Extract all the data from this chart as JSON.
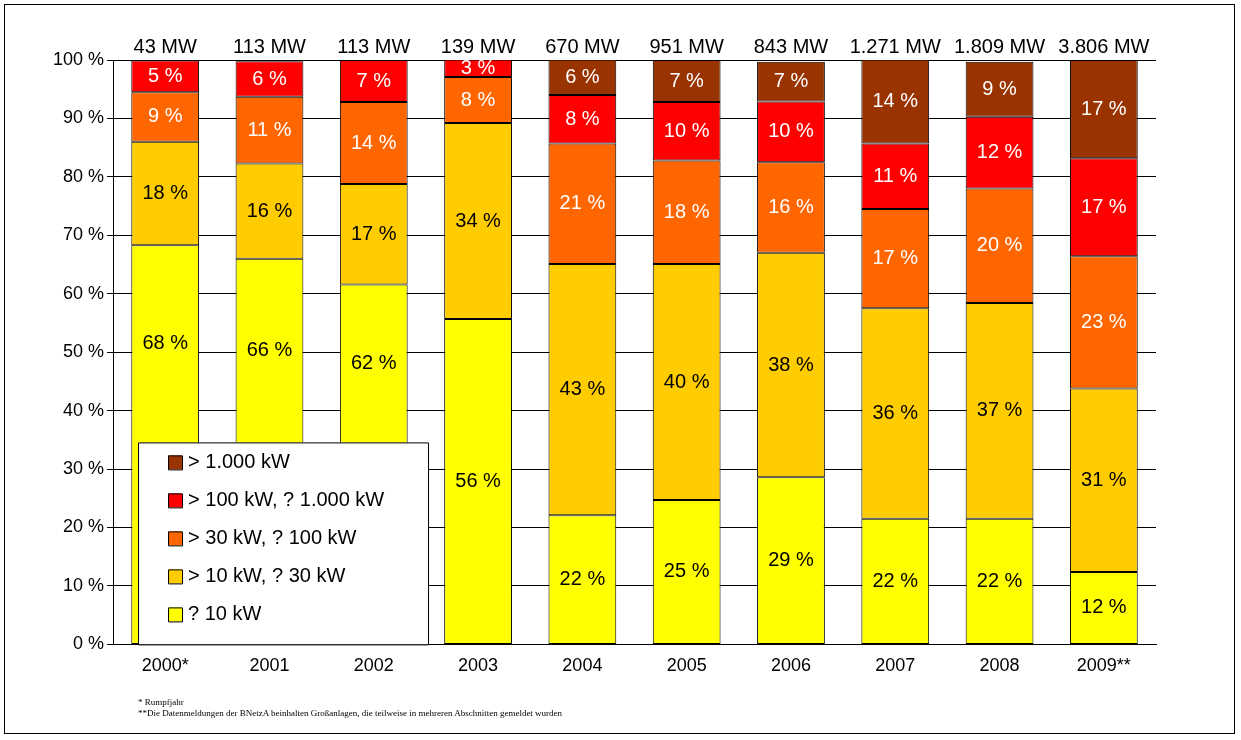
{
  "chart_data": {
    "type": "bar",
    "stacked": true,
    "categories": [
      "2000*",
      "2001",
      "2002",
      "2003",
      "2004",
      "2005",
      "2006",
      "2007",
      "2008",
      "2009**"
    ],
    "series": [
      {
        "name": "? 10 kW",
        "color": "#ffff00",
        "values": [
          68.3,
          66.0,
          61.6,
          55.7,
          22.1,
          24.7,
          28.6,
          21.5,
          21.5,
          12.4
        ],
        "value_labels": [
          "68 %",
          "66 %",
          "62 %",
          "56 %",
          "22 %",
          "25 %",
          "29 %",
          "22 %",
          "22 %",
          "12 %"
        ]
      },
      {
        "name": "> 10 kW, ? 30 kW",
        "color": "#ffcc00",
        "values": [
          17.7,
          16.3,
          17.2,
          33.5,
          43.0,
          40.4,
          38.4,
          36.0,
          36.9,
          31.4
        ],
        "value_labels": [
          "18 %",
          "16 %",
          "17 %",
          "34 %",
          "43 %",
          "40 %",
          "38 %",
          "36 %",
          "37 %",
          "31 %"
        ]
      },
      {
        "name": "> 30 kW, ? 100 kW",
        "color": "#ff6600",
        "values": [
          8.5,
          11.4,
          14.0,
          7.9,
          20.6,
          17.7,
          15.5,
          17.0,
          19.6,
          22.6
        ],
        "value_labels": [
          "9 %",
          "11 %",
          "14 %",
          "8 %",
          "21 %",
          "18 %",
          "16 %",
          "17 %",
          "20 %",
          "23 %"
        ]
      },
      {
        "name": "> 100 kW, ? 1.000 kW",
        "color": "#ff0000",
        "values": [
          5.4,
          6.1,
          7.2,
          3.0,
          8.3,
          10.0,
          10.4,
          11.2,
          12.3,
          16.8
        ],
        "value_labels": [
          "5 %",
          "6 %",
          "7 %",
          "3 %",
          "8 %",
          "10 %",
          "10 %",
          "11 %",
          "12 %",
          "17 %"
        ]
      },
      {
        "name": "> 1.000 kW",
        "color": "#993300",
        "values": [
          null,
          null,
          null,
          null,
          6.1,
          7.2,
          6.8,
          14.4,
          9.4,
          16.8
        ],
        "value_labels": [
          null,
          null,
          null,
          null,
          "6 %",
          "7 %",
          "7 %",
          "14 %",
          "9 %",
          "17 %"
        ]
      }
    ],
    "ylim": [
      0,
      100
    ],
    "yticks": [
      {
        "value": 0,
        "label": "0 %"
      },
      {
        "value": 10,
        "label": "10 %"
      },
      {
        "value": 20,
        "label": "20 %"
      },
      {
        "value": 30,
        "label": "30 %"
      },
      {
        "value": 40,
        "label": "40 %"
      },
      {
        "value": 50,
        "label": "50 %"
      },
      {
        "value": 60,
        "label": "60 %"
      },
      {
        "value": 70,
        "label": "70 %"
      },
      {
        "value": 80,
        "label": "80 %"
      },
      {
        "value": 90,
        "label": "90 %"
      },
      {
        "value": 100,
        "label": "100 %"
      }
    ],
    "grid": "y",
    "legend": "bottom left",
    "annotations": [
      {
        "text": "43 MW",
        "x": "2000*",
        "y": 100
      },
      {
        "text": "113 MW",
        "x": "2001",
        "y": 100
      },
      {
        "text": "113 MW",
        "x": "2002",
        "y": 100
      },
      {
        "text": "139 MW",
        "x": "2003",
        "y": 100
      },
      {
        "text": "670 MW",
        "x": "2004",
        "y": 100
      },
      {
        "text": "951 MW",
        "x": "2005",
        "y": 100
      },
      {
        "text": "843 MW",
        "x": "2006",
        "y": 100
      },
      {
        "text": "1.271 MW",
        "x": "2007",
        "y": 100
      },
      {
        "text": "1.809 MW",
        "x": "2008",
        "y": 100
      },
      {
        "text": "3.806 MW",
        "x": "2009**",
        "y": 100
      },
      "* Rumpfjahr",
      "**Die Datenmeldungen der BNetzA beinhalten Großanlagen, die teilweise in mehreren Abschnitten gemeldet wurden"
    ]
  }
}
